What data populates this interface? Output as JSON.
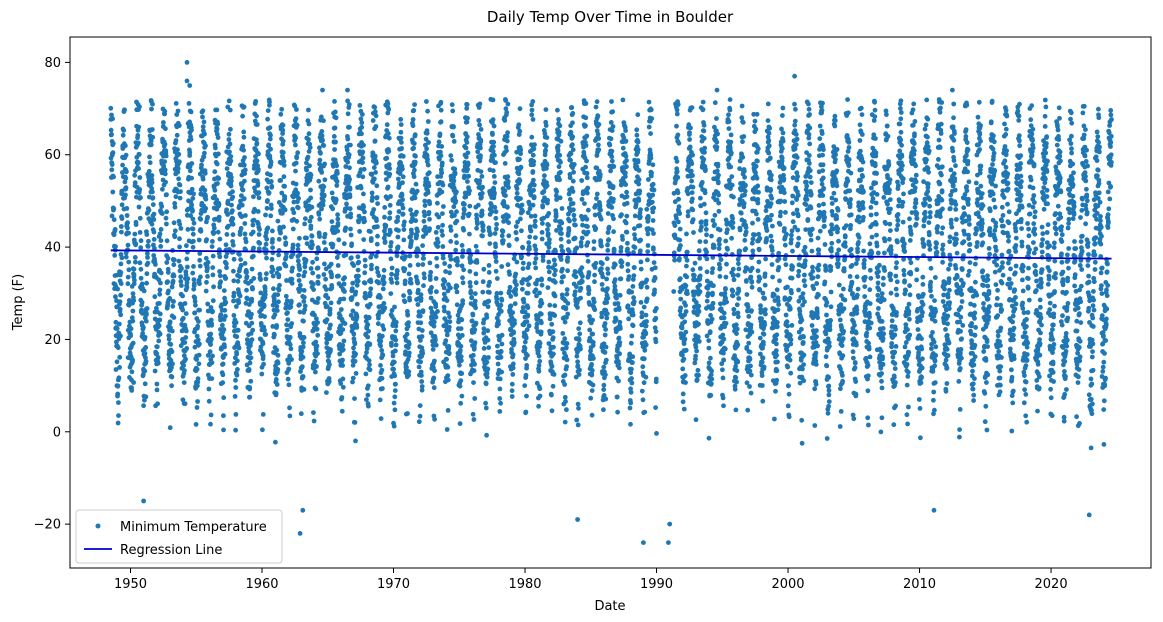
{
  "chart_data": {
    "type": "scatter",
    "title": "Daily Temp Over Time in Boulder",
    "xlabel": "Date",
    "ylabel": "Temp (F)",
    "xlim": [
      1945.4,
      2027.6
    ],
    "ylim": [
      -29.5,
      85.5
    ],
    "xticks": [
      1950,
      1960,
      1970,
      1980,
      1990,
      2000,
      2010,
      2020
    ],
    "xtick_labels": [
      "1950",
      "1960",
      "1970",
      "1980",
      "1990",
      "2000",
      "2010",
      "2020"
    ],
    "yticks": [
      -20,
      0,
      20,
      40,
      60,
      80
    ],
    "ytick_labels": [
      "−20",
      "0",
      "20",
      "40",
      "60",
      "80"
    ],
    "grid": false,
    "legend_position": "lower-left",
    "series": [
      {
        "name": "Minimum Temperature",
        "kind": "scatter",
        "color": "#1f77b4",
        "x_range": [
          1948.5,
          2024.6
        ],
        "seasonal_model": {
          "annual_mean": 38.5,
          "amplitude": 23,
          "noise_sd": 7
        },
        "data_gap": [
          1990.0,
          1991.3
        ],
        "notable_points": [
          {
            "x": 1954.3,
            "y": 80
          },
          {
            "x": 1954.3,
            "y": 76
          },
          {
            "x": 1954.5,
            "y": 75
          },
          {
            "x": 1964.6,
            "y": 74
          },
          {
            "x": 1966.5,
            "y": 74
          },
          {
            "x": 1977.4,
            "y": 72
          },
          {
            "x": 1994.6,
            "y": 74
          },
          {
            "x": 2000.5,
            "y": 77
          },
          {
            "x": 2012.5,
            "y": 74
          },
          {
            "x": 1951.0,
            "y": -15
          },
          {
            "x": 1962.9,
            "y": -22
          },
          {
            "x": 1963.1,
            "y": -17
          },
          {
            "x": 1984.0,
            "y": -19
          },
          {
            "x": 1989.0,
            "y": -24
          },
          {
            "x": 1990.9,
            "y": -24
          },
          {
            "x": 1991.0,
            "y": -20
          },
          {
            "x": 2011.1,
            "y": -17
          },
          {
            "x": 2022.9,
            "y": -18
          }
        ]
      },
      {
        "name": "Regression Line",
        "kind": "line",
        "color": "#0000cc",
        "x": [
          1948.5,
          2024.6
        ],
        "y": [
          39.3,
          37.5
        ]
      }
    ]
  }
}
